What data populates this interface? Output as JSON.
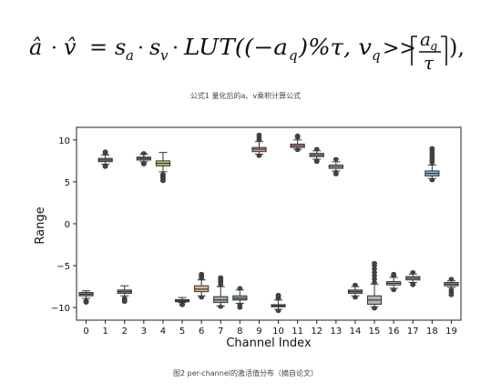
{
  "formula": {
    "lhs_a": "â",
    "lhs_dot": "·",
    "lhs_v": "v̂",
    "eq": "=",
    "s_a": "s",
    "s_a_sub": "a",
    "s_v": "s",
    "s_v_sub": "v",
    "lut": "LUT((−a",
    "lut_sub": "q",
    "mid": ")%τ, v",
    "mid_sub": "q",
    "shift": ">>",
    "frac_num": "a",
    "frac_num_sub": "q",
    "frac_den": "τ",
    "end": "),"
  },
  "caption_top": "公式1 量化后的a、v乘积计算公式",
  "caption_bottom": "图2 per-channel的激活值分布（摘自论文）",
  "chart_data": {
    "type": "box",
    "xlabel": "Channel Index",
    "ylabel": "Range",
    "ylim": [
      -11.5,
      11.5
    ],
    "yticks": [
      -10,
      -5,
      0,
      5,
      10
    ],
    "grid": false,
    "categories": [
      "0",
      "1",
      "2",
      "3",
      "4",
      "5",
      "6",
      "7",
      "8",
      "9",
      "10",
      "11",
      "12",
      "13",
      "14",
      "15",
      "16",
      "17",
      "18",
      "19"
    ],
    "boxes": [
      {
        "min": -8.9,
        "q1": -8.6,
        "median": -8.4,
        "q3": -8.2,
        "max": -8.0,
        "fliers": [
          -9.2,
          -9.3,
          -9.4
        ],
        "color": "#7f95a3"
      },
      {
        "min": 7.1,
        "q1": 7.4,
        "median": 7.6,
        "q3": 7.8,
        "max": 8.2,
        "fliers": [
          8.4,
          8.6,
          6.9,
          6.8
        ],
        "color": "#8a9470"
      },
      {
        "min": -8.6,
        "q1": -8.3,
        "median": -8.1,
        "q3": -7.9,
        "max": -7.4,
        "fliers": [
          -8.9,
          -9.1,
          -9.3
        ],
        "color": "#8e8e9a"
      },
      {
        "min": 7.4,
        "q1": 7.6,
        "median": 7.8,
        "q3": 7.95,
        "max": 8.3,
        "fliers": [
          7.2,
          7.1,
          8.4
        ],
        "color": "#8a8f96"
      },
      {
        "min": 6.2,
        "q1": 6.9,
        "median": 7.2,
        "q3": 7.5,
        "max": 8.5,
        "fliers": [
          5.9,
          5.7,
          5.5,
          5.3,
          5.1
        ],
        "color": "#a9c97e"
      },
      {
        "min": -9.4,
        "q1": -9.3,
        "median": -9.2,
        "q3": -9.05,
        "max": -8.8,
        "fliers": [
          -9.6,
          -9.7
        ],
        "color": "#5b7f9c"
      },
      {
        "min": -8.6,
        "q1": -8.1,
        "median": -7.8,
        "q3": -7.4,
        "max": -6.7,
        "fliers": [
          -6.5,
          -6.3,
          -6.1,
          -6.0,
          -8.8
        ],
        "color": "#d8b88a"
      },
      {
        "min": -9.8,
        "q1": -9.4,
        "median": -9.1,
        "q3": -8.7,
        "max": -7.5,
        "fliers": [
          -7.3,
          -7.0,
          -6.8,
          -6.6,
          -6.4,
          -9.9
        ],
        "color": "#a7a8b5"
      },
      {
        "min": -9.5,
        "q1": -9.1,
        "median": -8.9,
        "q3": -8.6,
        "max": -7.9,
        "fliers": [
          -7.7,
          -9.7,
          -10.0
        ],
        "color": "#7fa6ad"
      },
      {
        "min": 8.3,
        "q1": 8.6,
        "median": 8.9,
        "q3": 9.1,
        "max": 9.8,
        "fliers": [
          10.0,
          10.3,
          10.6,
          8.1
        ],
        "color": "#d39a86"
      },
      {
        "min": -10.2,
        "q1": -9.9,
        "median": -9.8,
        "q3": -9.65,
        "max": -9.1,
        "fliers": [
          -8.9,
          -8.7,
          -8.5,
          -10.4
        ],
        "color": "#7a8592"
      },
      {
        "min": 8.9,
        "q1": 9.1,
        "median": 9.3,
        "q3": 9.5,
        "max": 10.0,
        "fliers": [
          10.3,
          10.5,
          8.8
        ],
        "color": "#cf97ab"
      },
      {
        "min": 7.7,
        "q1": 8.0,
        "median": 8.2,
        "q3": 8.4,
        "max": 8.7,
        "fliers": [
          7.5,
          7.4,
          8.9
        ],
        "color": "#a3a3a3"
      },
      {
        "min": 6.3,
        "q1": 6.6,
        "median": 6.8,
        "q3": 7.0,
        "max": 7.4,
        "fliers": [
          6.1,
          5.9,
          7.7
        ],
        "color": "#c9c38a"
      },
      {
        "min": -8.6,
        "q1": -8.3,
        "median": -8.1,
        "q3": -7.9,
        "max": -7.5,
        "fliers": [
          -8.8,
          -7.3
        ],
        "color": "#808a90"
      },
      {
        "min": -9.9,
        "q1": -9.6,
        "median": -9.1,
        "q3": -8.6,
        "max": -7.2,
        "fliers": [
          -7.0,
          -6.6,
          -6.2,
          -5.8,
          -5.4,
          -5.0,
          -4.7,
          -10.1
        ],
        "color": "#b0b3b8"
      },
      {
        "min": -7.7,
        "q1": -7.3,
        "median": -7.1,
        "q3": -6.9,
        "max": -6.4,
        "fliers": [
          -6.2,
          -6.0,
          -7.9
        ],
        "color": "#9fb4bf"
      },
      {
        "min": -7.0,
        "q1": -6.7,
        "median": -6.5,
        "q3": -6.3,
        "max": -6.0,
        "fliers": [
          -7.2,
          -7.3,
          -5.8
        ],
        "color": "#a4a8b0"
      },
      {
        "min": 5.4,
        "q1": 5.7,
        "median": 6.0,
        "q3": 6.3,
        "max": 7.0,
        "fliers": [
          7.3,
          7.6,
          7.9,
          8.2,
          8.5,
          8.8,
          9.0,
          5.2
        ],
        "color": "#8fb0c6"
      },
      {
        "min": -7.6,
        "q1": -7.4,
        "median": -7.2,
        "q3": -7.0,
        "max": -6.8,
        "fliers": [
          -7.9,
          -8.2,
          -8.5,
          -6.6
        ],
        "color": "#a3a3a3"
      }
    ]
  }
}
